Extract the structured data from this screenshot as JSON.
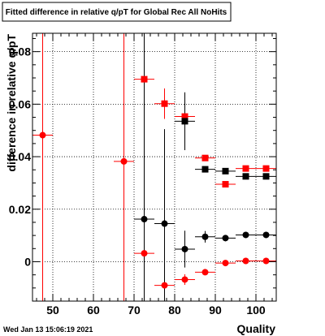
{
  "chart_data": {
    "type": "scatter",
    "title": "Fitted difference in relative q/pT for Global Rec All NoHits",
    "xlabel": "Quality",
    "ylabel": "difference in relative q/pT",
    "xlim": [
      45,
      105
    ],
    "ylim": [
      -0.015,
      0.087
    ],
    "grid": true,
    "x_ticks": [
      50,
      60,
      70,
      80,
      90,
      100
    ],
    "x_tick_labels": [
      "50",
      "60",
      "70",
      "80",
      "90",
      "100"
    ],
    "y_ticks": [
      0,
      0.02,
      0.04,
      0.06,
      0.08
    ],
    "y_tick_labels": [
      "0",
      "0.02",
      "0.04",
      "0.06",
      "0.08"
    ],
    "series": [
      {
        "marker": "square",
        "color": "#ff0000",
        "points": [
          {
            "x": 72.5,
            "y": 0.0695,
            "xerr": 2.5,
            "yerr": 0.1
          },
          {
            "x": 77.5,
            "y": 0.0602,
            "xerr": 2.5,
            "yerr": 0.0058
          },
          {
            "x": 82.5,
            "y": 0.0553,
            "xerr": 2.5,
            "yerr": 0.0022
          },
          {
            "x": 87.5,
            "y": 0.0395,
            "xerr": 2.5,
            "yerr": 0.0009
          },
          {
            "x": 92.5,
            "y": 0.0295,
            "xerr": 2.5,
            "yerr": 0.0006
          },
          {
            "x": 97.5,
            "y": 0.0355,
            "xerr": 2.5,
            "yerr": 0.0005
          },
          {
            "x": 102.5,
            "y": 0.0355,
            "xerr": 2.5,
            "yerr": 0.0005
          }
        ]
      },
      {
        "marker": "square",
        "color": "#000000",
        "points": [
          {
            "x": 82.5,
            "y": 0.0535,
            "xerr": 2.5,
            "yerr": 0.011
          },
          {
            "x": 87.5,
            "y": 0.0352,
            "xerr": 2.5,
            "yerr": 0.001
          },
          {
            "x": 92.5,
            "y": 0.0345,
            "xerr": 2.5,
            "yerr": 0.0008
          },
          {
            "x": 97.5,
            "y": 0.0325,
            "xerr": 2.5,
            "yerr": 0.0006
          },
          {
            "x": 102.5,
            "y": 0.0325,
            "xerr": 2.5,
            "yerr": 0.0005
          }
        ]
      },
      {
        "marker": "circle",
        "color": "#ff0000",
        "points": [
          {
            "x": 47.5,
            "y": 0.0482,
            "xerr": 2.5,
            "yerr": 0.1
          },
          {
            "x": 67.5,
            "y": 0.0382,
            "xerr": 2.5,
            "yerr": 0.1
          },
          {
            "x": 72.5,
            "y": 0.0032,
            "xerr": 2.5,
            "yerr": 0.01
          },
          {
            "x": 77.5,
            "y": -0.009,
            "xerr": 2.5,
            "yerr": 0.004
          },
          {
            "x": 82.5,
            "y": -0.0068,
            "xerr": 2.5,
            "yerr": 0.002
          },
          {
            "x": 87.5,
            "y": -0.004,
            "xerr": 2.5,
            "yerr": 0.0008
          },
          {
            "x": 92.5,
            "y": -0.0005,
            "xerr": 2.5,
            "yerr": 0.0005
          },
          {
            "x": 97.5,
            "y": 0.0003,
            "xerr": 2.5,
            "yerr": 0.0004
          },
          {
            "x": 102.5,
            "y": 0.0003,
            "xerr": 2.5,
            "yerr": 0.0004
          }
        ]
      },
      {
        "marker": "circle",
        "color": "#000000",
        "points": [
          {
            "x": 72.5,
            "y": 0.0162,
            "xerr": 2.5,
            "yerr": 0.1
          },
          {
            "x": 77.5,
            "y": 0.0145,
            "xerr": 2.5,
            "yerr": 0.036
          },
          {
            "x": 82.5,
            "y": 0.0048,
            "xerr": 2.5,
            "yerr": 0.007
          },
          {
            "x": 87.5,
            "y": 0.0095,
            "xerr": 2.5,
            "yerr": 0.0022
          },
          {
            "x": 92.5,
            "y": 0.009,
            "xerr": 2.5,
            "yerr": 0.0012
          },
          {
            "x": 97.5,
            "y": 0.0102,
            "xerr": 2.5,
            "yerr": 0.0008
          },
          {
            "x": 102.5,
            "y": 0.0102,
            "xerr": 2.5,
            "yerr": 0.0006
          }
        ]
      }
    ]
  },
  "footer": {
    "timestamp": "Wed Jan 13 15:06:19 2021"
  }
}
